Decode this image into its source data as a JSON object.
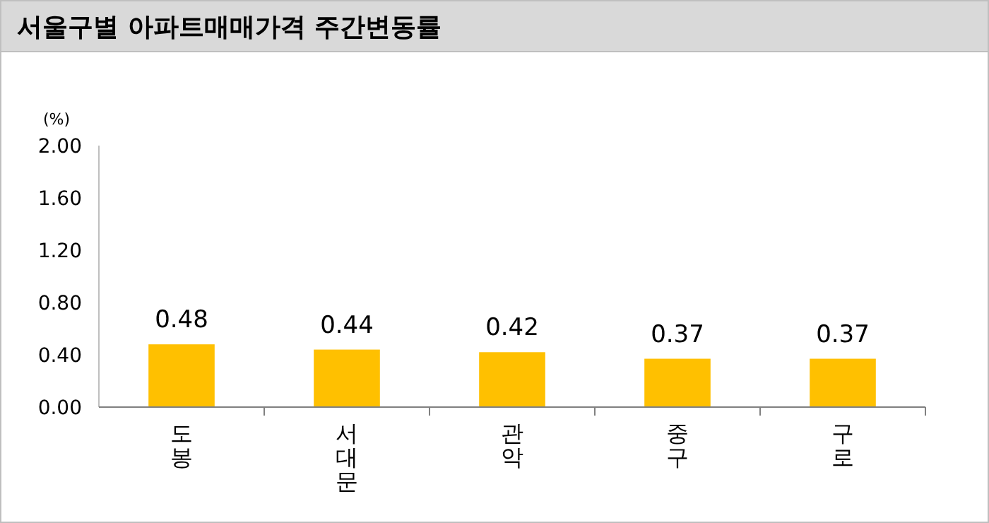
{
  "chart_data": {
    "type": "bar",
    "title": "서울구별 아파트매매가격 주간변동률",
    "ylabel": "(%)",
    "categories": [
      "도봉",
      "서대문",
      "관악",
      "중구",
      "구로"
    ],
    "values": [
      0.48,
      0.44,
      0.42,
      0.37,
      0.37
    ],
    "color": "#ffc000",
    "ylim": [
      0,
      2
    ],
    "yticks": [
      {
        "value": 0,
        "label": "0.00"
      },
      {
        "value": 0.4,
        "label": "0.40"
      },
      {
        "value": 0.8,
        "label": "0.80"
      },
      {
        "value": 1.2,
        "label": "1.20"
      },
      {
        "value": 1.6,
        "label": "1.60"
      },
      {
        "value": 2,
        "label": "2.00"
      }
    ],
    "value_labels": [
      "0.48",
      "0.44",
      "0.42",
      "0.37",
      "0.37"
    ],
    "grid": false
  }
}
